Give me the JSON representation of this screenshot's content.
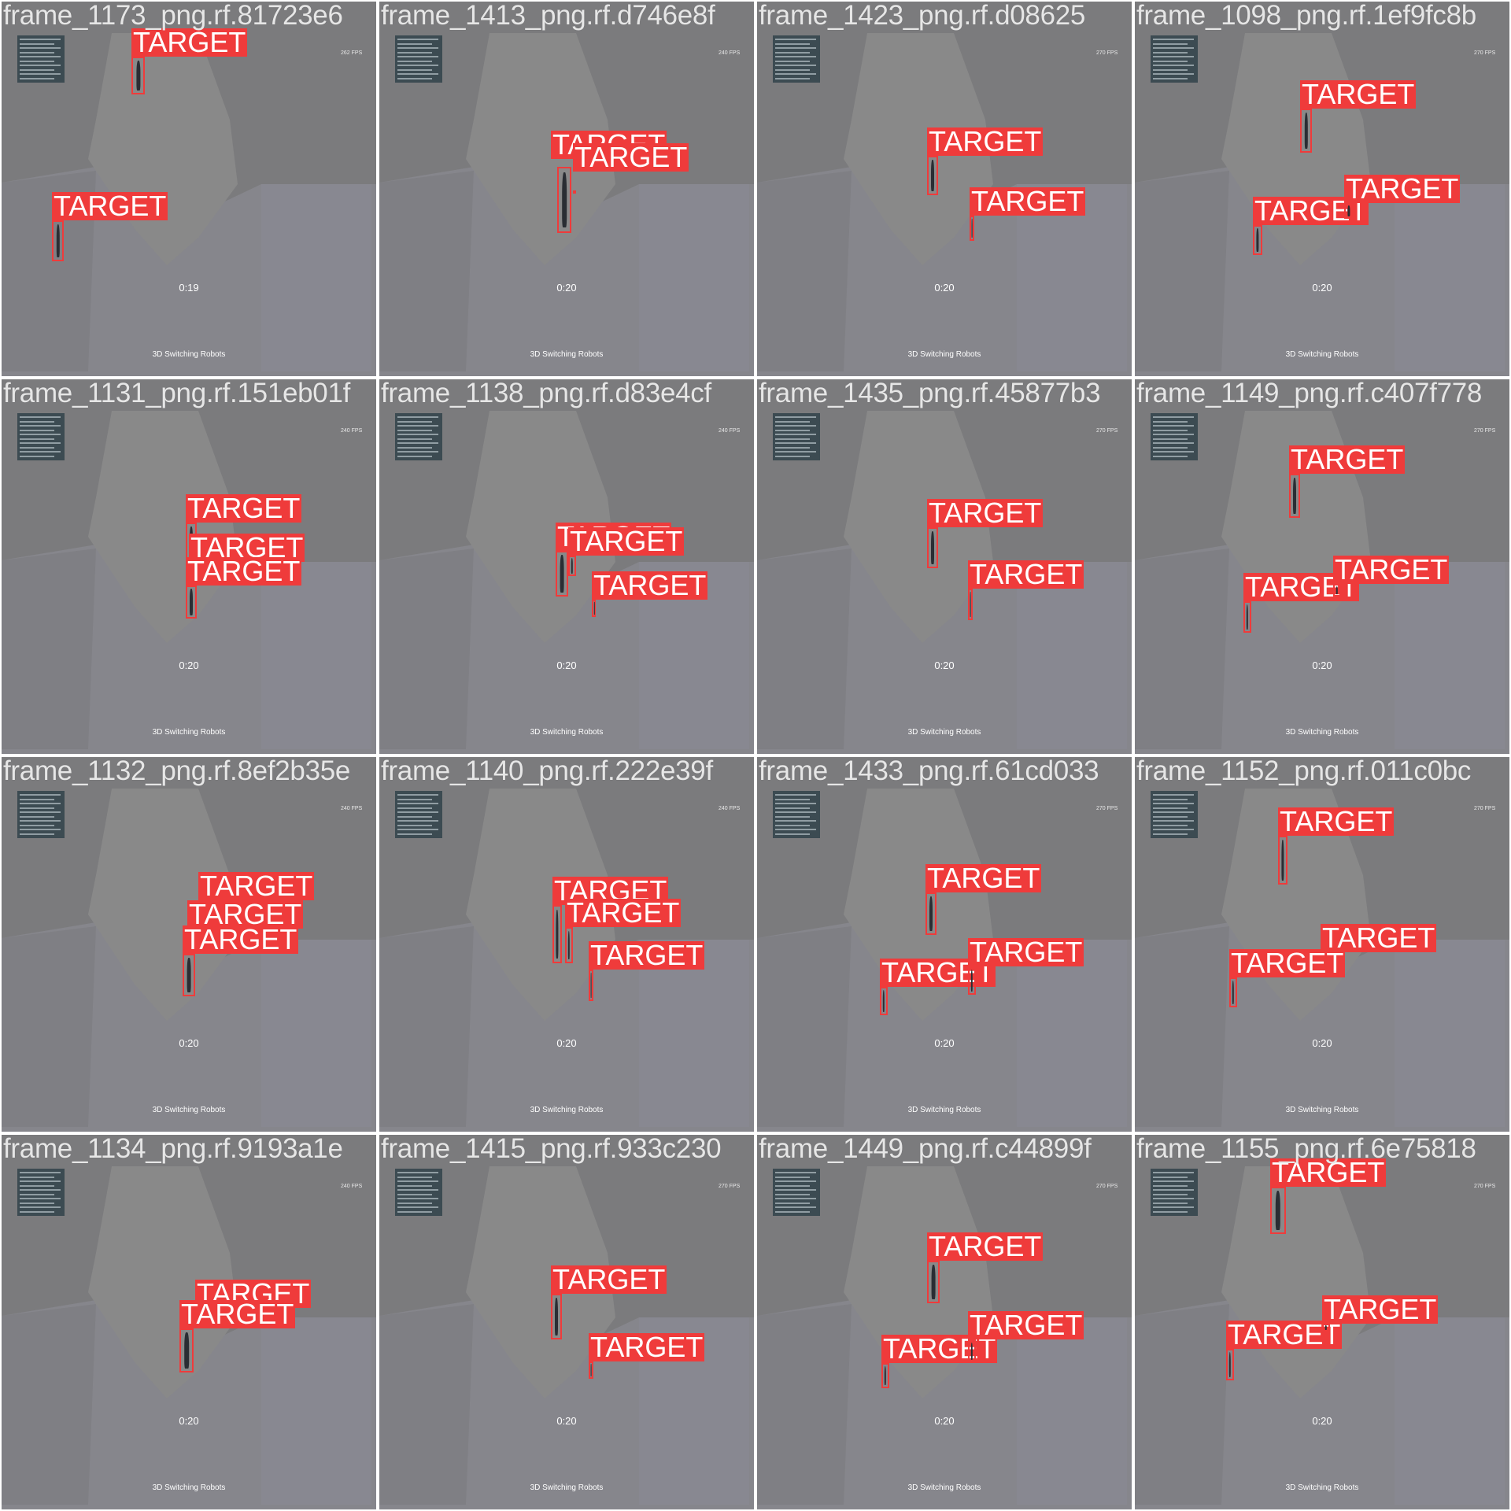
{
  "mosaic": {
    "label_color": "#ef3b3b",
    "tiles": [
      {
        "filename": "frame_1173_png.rf.81723e6",
        "timer": "0:19",
        "fps": "262 FPS",
        "title": "3D Switching Robots",
        "detections": [
          {
            "label": "TARGET"
          },
          {
            "label": "TARGET"
          }
        ]
      },
      {
        "filename": "frame_1413_png.rf.d746e8f",
        "timer": "0:20",
        "fps": "240 FPS",
        "title": "3D Switching Robots",
        "detections": [
          {
            "label": "TARGET"
          },
          {
            "label": "TARGET"
          }
        ]
      },
      {
        "filename": "frame_1423_png.rf.d08625",
        "timer": "0:20",
        "fps": "270 FPS",
        "title": "3D Switching Robots",
        "detections": [
          {
            "label": "TARGET"
          },
          {
            "label": "TARGET"
          }
        ]
      },
      {
        "filename": "frame_1098_png.rf.1ef9fc8b",
        "timer": "0:20",
        "fps": "270 FPS",
        "title": "3D Switching Robots",
        "detections": [
          {
            "label": "TARGET"
          },
          {
            "label": "TARGET"
          },
          {
            "label": "TARGET"
          }
        ]
      },
      {
        "filename": "frame_1131_png.rf.151eb01f",
        "timer": "0:20",
        "fps": "240 FPS",
        "title": "3D Switching Robots",
        "detections": [
          {
            "label": "TARGET"
          },
          {
            "label": "TARGET"
          },
          {
            "label": "TARGET"
          }
        ]
      },
      {
        "filename": "frame_1138_png.rf.d83e4cf",
        "timer": "0:20",
        "fps": "240 FPS",
        "title": "3D Switching Robots",
        "detections": [
          {
            "label": "TARGET"
          },
          {
            "label": "TARGET"
          },
          {
            "label": "TARGET"
          }
        ]
      },
      {
        "filename": "frame_1435_png.rf.45877b3",
        "timer": "0:20",
        "fps": "270 FPS",
        "title": "3D Switching Robots",
        "detections": [
          {
            "label": "TARGET"
          },
          {
            "label": "TARGET"
          }
        ]
      },
      {
        "filename": "frame_1149_png.rf.c407f778",
        "timer": "0:20",
        "fps": "270 FPS",
        "title": "3D Switching Robots",
        "detections": [
          {
            "label": "TARGET"
          },
          {
            "label": "TARGET"
          },
          {
            "label": "TARGET"
          }
        ]
      },
      {
        "filename": "frame_1132_png.rf.8ef2b35e",
        "timer": "0:20",
        "fps": "240 FPS",
        "title": "3D Switching Robots",
        "detections": [
          {
            "label": "TARGET"
          },
          {
            "label": "TARGET"
          },
          {
            "label": "TARGET"
          }
        ]
      },
      {
        "filename": "frame_1140_png.rf.222e39f",
        "timer": "0:20",
        "fps": "240 FPS",
        "title": "3D Switching Robots",
        "detections": [
          {
            "label": "TARGET"
          },
          {
            "label": "TARGET"
          },
          {
            "label": "TARGET"
          }
        ]
      },
      {
        "filename": "frame_1433_png.rf.61cd033",
        "timer": "0:20",
        "fps": "270 FPS",
        "title": "3D Switching Robots",
        "detections": [
          {
            "label": "TARGET"
          },
          {
            "label": "TARGET"
          },
          {
            "label": "TARGET"
          }
        ]
      },
      {
        "filename": "frame_1152_png.rf.011c0bc",
        "timer": "0:20",
        "fps": "270 FPS",
        "title": "3D Switching Robots",
        "detections": [
          {
            "label": "TARGET"
          },
          {
            "label": "TARGET"
          },
          {
            "label": "TARGET"
          }
        ]
      },
      {
        "filename": "frame_1134_png.rf.9193a1e",
        "timer": "0:20",
        "fps": "240 FPS",
        "title": "3D Switching Robots",
        "detections": [
          {
            "label": "TARGET"
          },
          {
            "label": "TARGET"
          }
        ]
      },
      {
        "filename": "frame_1415_png.rf.933c230",
        "timer": "0:20",
        "fps": "270 FPS",
        "title": "3D Switching Robots",
        "detections": [
          {
            "label": "TARGET"
          },
          {
            "label": "TARGET"
          }
        ]
      },
      {
        "filename": "frame_1449_png.rf.c44899f",
        "timer": "0:20",
        "fps": "270 FPS",
        "title": "3D Switching Robots",
        "detections": [
          {
            "label": "TARGET"
          },
          {
            "label": "TARGET"
          },
          {
            "label": "TARGET"
          }
        ]
      },
      {
        "filename": "frame_1155_png.rf.6e75818",
        "timer": "0:20",
        "fps": "270 FPS",
        "title": "3D Switching Robots",
        "detections": [
          {
            "label": "TARGET"
          },
          {
            "label": "TARGET"
          },
          {
            "label": "TARGET"
          }
        ]
      }
    ]
  }
}
